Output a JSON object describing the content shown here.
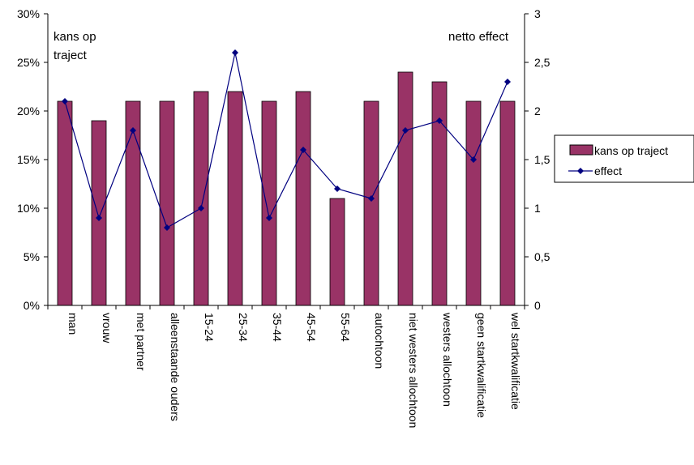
{
  "chart_data": {
    "type": "bar",
    "categories": [
      "man",
      "vrouw",
      "met partner",
      "alleenstaande ouders",
      "15-24",
      "25-34",
      "35-44",
      "45-54",
      "55-64",
      "autochtoon",
      "niet westers allochtoon",
      "westers allochtoon",
      "geen startkwalificatie",
      "wel startkwalificatie"
    ],
    "series": [
      {
        "name": "kans op traject",
        "type": "bar",
        "axis": "left",
        "color": "#993366",
        "values": [
          21,
          19,
          21,
          21,
          22,
          22,
          21,
          22,
          11,
          21,
          24,
          23,
          21,
          21
        ]
      },
      {
        "name": "effect",
        "type": "line",
        "axis": "right",
        "color": "#000080",
        "values": [
          2.1,
          0.9,
          1.8,
          0.8,
          1.0,
          2.6,
          0.9,
          1.6,
          1.2,
          1.1,
          1.8,
          1.9,
          1.5,
          2.3
        ]
      }
    ],
    "y_left": {
      "lim": [
        0,
        30
      ],
      "ticks": [
        0,
        5,
        10,
        15,
        20,
        25,
        30
      ],
      "tick_labels": [
        "0%",
        "5%",
        "10%",
        "15%",
        "20%",
        "25%",
        "30%"
      ]
    },
    "y_right": {
      "lim": [
        0,
        3
      ],
      "ticks": [
        0,
        0.5,
        1,
        1.5,
        2,
        2.5,
        3
      ],
      "tick_labels": [
        "0",
        "0,5",
        "1",
        "1,5",
        "2",
        "2,5",
        "3"
      ]
    },
    "annotations": {
      "left_line1": "kans op",
      "left_line2": "traject",
      "right": "netto effect"
    },
    "legend": {
      "placement": "right",
      "entries": [
        "kans op traject",
        "effect"
      ]
    },
    "grid": false
  }
}
